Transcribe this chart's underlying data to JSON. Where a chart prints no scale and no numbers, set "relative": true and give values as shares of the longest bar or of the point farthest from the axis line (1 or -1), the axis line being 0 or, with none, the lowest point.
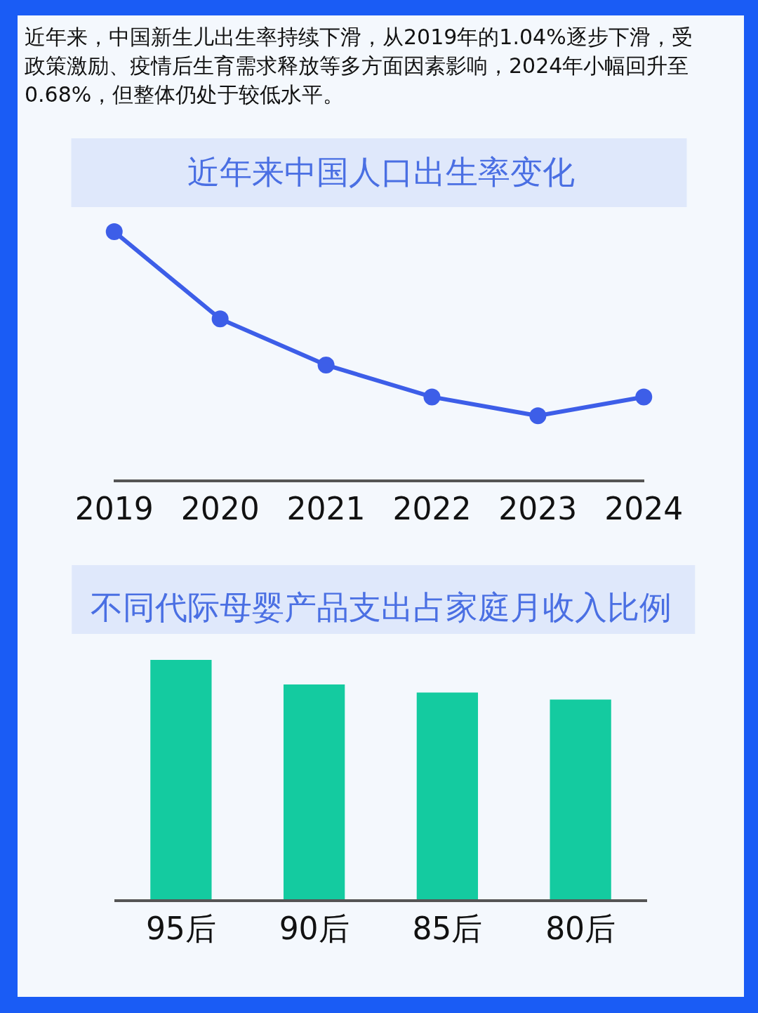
{
  "chart_data": [
    {
      "type": "line",
      "title": "近年来中国人口出生率变化",
      "annotations": [
        "近年来，中国新生儿出生率持续下滑，从2019年的1.04%逐步下滑，受政策激励、疫情后生育需求释放等多方面因素影响，2024年小幅回升至0.68%，但整体仍处于较低水平。"
      ],
      "categories": [
        "2019",
        "2020",
        "2021",
        "2022",
        "2023",
        "2024"
      ],
      "series": [
        {
          "color": "#3d5ee8",
          "values": [
            1,
            0.648,
            0.462,
            0.333,
            0.257,
            0.333
          ]
        }
      ],
      "relative": true,
      "marker": "circle",
      "line_style": "solid",
      "grid": false,
      "legend": false
    },
    {
      "type": "bar",
      "title": "不同代际母婴产品支出占家庭月收入比例",
      "categories": [
        "95后",
        "90后",
        "85后",
        "80后"
      ],
      "values": [
        1,
        0.897,
        0.864,
        0.834
      ],
      "color": "#14cba0",
      "relative": true,
      "grid": false,
      "legend": false
    }
  ]
}
